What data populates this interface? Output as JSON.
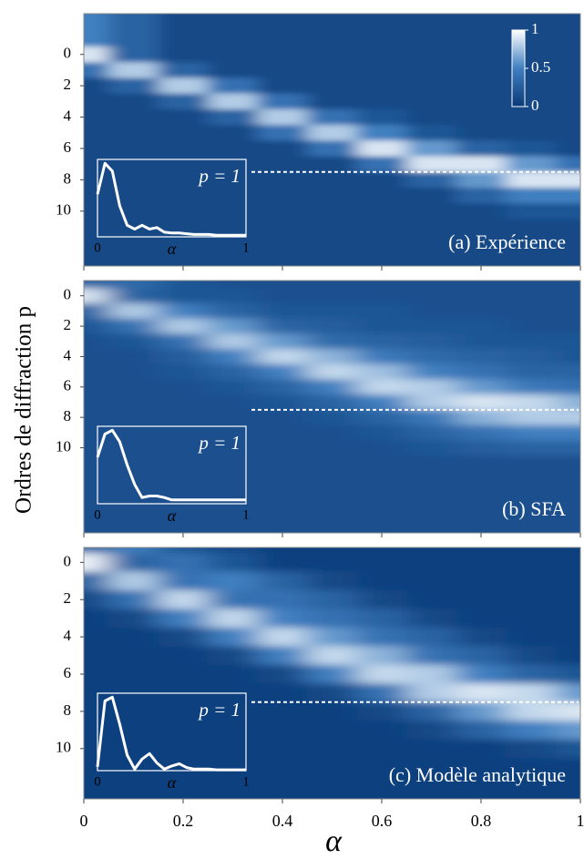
{
  "chart_data": [
    {
      "type": "heatmap",
      "title": "(a) Expérience",
      "colormap": [
        "#0a3a78",
        "#3f7fc0",
        "#ffffff"
      ],
      "x": [
        0,
        0.1,
        0.2,
        0.3,
        0.4,
        0.5,
        0.6,
        0.7,
        0.8,
        0.9,
        1
      ],
      "y": [
        -1,
        0,
        1,
        2,
        3,
        4,
        5,
        6,
        7,
        8,
        9,
        10,
        11
      ],
      "z": [
        [
          0.5,
          0.3,
          0.1,
          0.1,
          0.1,
          0.1,
          0.1,
          0.1,
          0.1,
          0.1,
          0.1
        ],
        [
          0.9,
          0.3,
          0.1,
          0.1,
          0.1,
          0.1,
          0.1,
          0.1,
          0.1,
          0.1,
          0.1
        ],
        [
          0.4,
          0.8,
          0.3,
          0.1,
          0.1,
          0.1,
          0.1,
          0.1,
          0.1,
          0.1,
          0.1
        ],
        [
          0.1,
          0.3,
          0.8,
          0.4,
          0.1,
          0.1,
          0.1,
          0.1,
          0.1,
          0.1,
          0.1
        ],
        [
          0.1,
          0.1,
          0.3,
          0.8,
          0.4,
          0.1,
          0.1,
          0.1,
          0.1,
          0.1,
          0.1
        ],
        [
          0.1,
          0.1,
          0.1,
          0.3,
          0.8,
          0.4,
          0.2,
          0.1,
          0.1,
          0.1,
          0.1
        ],
        [
          0.1,
          0.1,
          0.1,
          0.1,
          0.4,
          0.8,
          0.5,
          0.2,
          0.1,
          0.1,
          0.1
        ],
        [
          0.1,
          0.1,
          0.1,
          0.1,
          0.1,
          0.4,
          0.9,
          0.6,
          0.3,
          0.2,
          0.1
        ],
        [
          0.1,
          0.1,
          0.1,
          0.1,
          0.1,
          0.1,
          0.4,
          0.9,
          0.9,
          0.6,
          0.4
        ],
        [
          0.1,
          0.1,
          0.1,
          0.1,
          0.1,
          0.1,
          0.1,
          0.3,
          0.6,
          0.9,
          0.9
        ],
        [
          0.1,
          0.1,
          0.1,
          0.1,
          0.1,
          0.1,
          0.1,
          0.1,
          0.3,
          0.5,
          0.5
        ],
        [
          0.1,
          0.1,
          0.1,
          0.1,
          0.1,
          0.1,
          0.1,
          0.1,
          0.1,
          0.2,
          0.2
        ],
        [
          0.1,
          0.1,
          0.1,
          0.1,
          0.1,
          0.1,
          0.1,
          0.1,
          0.1,
          0.1,
          0.1
        ]
      ],
      "xlim": [
        0,
        1
      ],
      "xticks": [
        0,
        0.2,
        0.4,
        0.6,
        0.8,
        1
      ],
      "ylim": [
        -2.6,
        13.5
      ],
      "yticks": [
        0,
        2,
        4,
        6,
        8,
        10
      ],
      "reference_line": 7.5,
      "colorbar": {
        "lim": [
          0,
          1
        ],
        "ticks": [
          0,
          0.5,
          1
        ]
      },
      "inset": {
        "label": "p = 1",
        "xlabel": "α",
        "xlim": [
          0,
          1
        ],
        "xticks": [
          0,
          1
        ],
        "ylim": [
          0,
          1
        ],
        "x": [
          0,
          0.05,
          0.1,
          0.15,
          0.2,
          0.25,
          0.3,
          0.35,
          0.4,
          0.45,
          0.5,
          0.55,
          0.6,
          0.65,
          0.7,
          0.75,
          0.8,
          0.85,
          0.9,
          0.95,
          1
        ],
        "values": [
          0.55,
          0.95,
          0.85,
          0.4,
          0.15,
          0.1,
          0.15,
          0.1,
          0.12,
          0.06,
          0.05,
          0.05,
          0.04,
          0.03,
          0.03,
          0.03,
          0.02,
          0.02,
          0.02,
          0.02,
          0.02
        ]
      }
    },
    {
      "type": "heatmap",
      "title": "(b) SFA",
      "ylabel": "Ordres de diffraction p",
      "colormap": [
        "#0a3a78",
        "#3f7fc0",
        "#ffffff"
      ],
      "x": [
        0,
        0.1,
        0.2,
        0.3,
        0.4,
        0.5,
        0.6,
        0.7,
        0.8,
        0.9,
        1
      ],
      "y": [
        -1,
        0,
        1,
        2,
        3,
        4,
        5,
        6,
        7,
        8,
        9,
        10,
        11
      ],
      "z": [
        [
          0.3,
          0.35,
          0.2,
          0.15,
          0.15,
          0.15,
          0.15,
          0.15,
          0.15,
          0.15,
          0.15
        ],
        [
          0.9,
          0.3,
          0.2,
          0.2,
          0.15,
          0.15,
          0.15,
          0.15,
          0.15,
          0.15,
          0.15
        ],
        [
          0.3,
          0.8,
          0.5,
          0.3,
          0.2,
          0.2,
          0.2,
          0.15,
          0.15,
          0.15,
          0.15
        ],
        [
          0.2,
          0.4,
          0.8,
          0.6,
          0.3,
          0.25,
          0.2,
          0.2,
          0.2,
          0.15,
          0.15
        ],
        [
          0.15,
          0.2,
          0.4,
          0.8,
          0.6,
          0.35,
          0.3,
          0.25,
          0.2,
          0.2,
          0.2
        ],
        [
          0.15,
          0.15,
          0.25,
          0.5,
          0.85,
          0.7,
          0.45,
          0.35,
          0.3,
          0.25,
          0.2
        ],
        [
          0.15,
          0.15,
          0.2,
          0.3,
          0.5,
          0.85,
          0.75,
          0.5,
          0.4,
          0.3,
          0.3
        ],
        [
          0.15,
          0.15,
          0.15,
          0.2,
          0.3,
          0.5,
          0.85,
          0.8,
          0.6,
          0.45,
          0.4
        ],
        [
          0.15,
          0.15,
          0.15,
          0.15,
          0.2,
          0.3,
          0.5,
          0.8,
          0.9,
          0.85,
          0.7
        ],
        [
          0.15,
          0.15,
          0.15,
          0.15,
          0.15,
          0.2,
          0.3,
          0.45,
          0.7,
          0.8,
          0.8
        ],
        [
          0.15,
          0.15,
          0.15,
          0.15,
          0.15,
          0.15,
          0.2,
          0.3,
          0.4,
          0.5,
          0.5
        ],
        [
          0.15,
          0.15,
          0.15,
          0.15,
          0.15,
          0.15,
          0.15,
          0.2,
          0.25,
          0.3,
          0.3
        ],
        [
          0.15,
          0.15,
          0.15,
          0.15,
          0.15,
          0.15,
          0.15,
          0.15,
          0.15,
          0.15,
          0.15
        ]
      ],
      "xlim": [
        0,
        1
      ],
      "xticks": [
        0,
        0.2,
        0.4,
        0.6,
        0.8,
        1
      ],
      "ylim": [
        -1,
        15.6
      ],
      "yticks": [
        0,
        2,
        4,
        6,
        8,
        10
      ],
      "reference_line": 7.5,
      "inset": {
        "label": "p = 1",
        "xlabel": "α",
        "xlim": [
          0,
          1
        ],
        "xticks": [
          0,
          1
        ],
        "ylim": [
          0,
          1
        ],
        "x": [
          0,
          0.05,
          0.1,
          0.15,
          0.2,
          0.25,
          0.3,
          0.35,
          0.4,
          0.45,
          0.5,
          0.55,
          0.6,
          0.65,
          0.7,
          0.75,
          0.8,
          0.85,
          0.9,
          0.95,
          1
        ],
        "values": [
          0.6,
          0.9,
          0.95,
          0.8,
          0.5,
          0.25,
          0.08,
          0.1,
          0.1,
          0.08,
          0.05,
          0.05,
          0.05,
          0.05,
          0.05,
          0.05,
          0.05,
          0.05,
          0.05,
          0.05,
          0.05
        ]
      }
    },
    {
      "type": "heatmap",
      "title": "(c) Modèle analytique",
      "xlabel": "α",
      "colormap": [
        "#0a3a78",
        "#3f7fc0",
        "#ffffff"
      ],
      "x": [
        0,
        0.1,
        0.2,
        0.3,
        0.4,
        0.5,
        0.6,
        0.7,
        0.8,
        0.9,
        1
      ],
      "y": [
        -1,
        0,
        1,
        2,
        3,
        4,
        5,
        6,
        7,
        8,
        9,
        10,
        11
      ],
      "z": [
        [
          0.3,
          0.5,
          0.2,
          0.1,
          0.05,
          0.05,
          0.05,
          0.05,
          0.05,
          0.05,
          0.05
        ],
        [
          0.95,
          0.3,
          0.4,
          0.2,
          0.05,
          0.05,
          0.05,
          0.05,
          0.05,
          0.05,
          0.05
        ],
        [
          0.3,
          0.8,
          0.4,
          0.5,
          0.3,
          0.1,
          0.05,
          0.05,
          0.05,
          0.05,
          0.05
        ],
        [
          0.1,
          0.4,
          0.85,
          0.4,
          0.4,
          0.3,
          0.1,
          0.05,
          0.05,
          0.05,
          0.05
        ],
        [
          0.05,
          0.1,
          0.5,
          0.85,
          0.5,
          0.4,
          0.3,
          0.1,
          0.05,
          0.05,
          0.05
        ],
        [
          0.05,
          0.05,
          0.1,
          0.5,
          0.85,
          0.6,
          0.4,
          0.3,
          0.1,
          0.05,
          0.05
        ],
        [
          0.05,
          0.05,
          0.05,
          0.1,
          0.5,
          0.85,
          0.7,
          0.4,
          0.3,
          0.1,
          0.05
        ],
        [
          0.05,
          0.05,
          0.05,
          0.05,
          0.1,
          0.5,
          0.85,
          0.8,
          0.5,
          0.3,
          0.2
        ],
        [
          0.05,
          0.05,
          0.05,
          0.05,
          0.05,
          0.1,
          0.4,
          0.8,
          0.9,
          0.85,
          0.6
        ],
        [
          0.05,
          0.05,
          0.05,
          0.05,
          0.05,
          0.05,
          0.1,
          0.3,
          0.6,
          0.85,
          0.9
        ],
        [
          0.05,
          0.05,
          0.05,
          0.05,
          0.05,
          0.05,
          0.05,
          0.1,
          0.3,
          0.5,
          0.6
        ],
        [
          0.05,
          0.05,
          0.05,
          0.05,
          0.05,
          0.05,
          0.05,
          0.05,
          0.05,
          0.1,
          0.2
        ],
        [
          0.05,
          0.05,
          0.05,
          0.05,
          0.05,
          0.05,
          0.05,
          0.05,
          0.05,
          0.05,
          0.05
        ]
      ],
      "xlim": [
        0,
        1
      ],
      "xticks": [
        0,
        0.2,
        0.4,
        0.6,
        0.8,
        1
      ],
      "ylim": [
        -0.8,
        12.7
      ],
      "yticks": [
        0,
        2,
        4,
        6,
        8,
        10
      ],
      "reference_line": 7.5,
      "inset": {
        "label": "p = 1",
        "xlabel": "α",
        "xlim": [
          0,
          1
        ],
        "xticks": [
          0,
          1
        ],
        "ylim": [
          0,
          1
        ],
        "x": [
          0,
          0.05,
          0.1,
          0.15,
          0.2,
          0.25,
          0.3,
          0.35,
          0.4,
          0.45,
          0.5,
          0.55,
          0.6,
          0.65,
          0.7,
          0.75,
          0.8,
          0.85,
          0.9,
          0.95,
          1
        ],
        "values": [
          0.05,
          0.9,
          0.95,
          0.6,
          0.2,
          0.02,
          0.15,
          0.22,
          0.1,
          0.02,
          0.06,
          0.09,
          0.04,
          0.02,
          0.02,
          0.02,
          0.01,
          0.01,
          0.01,
          0.01,
          0.01
        ]
      }
    }
  ]
}
